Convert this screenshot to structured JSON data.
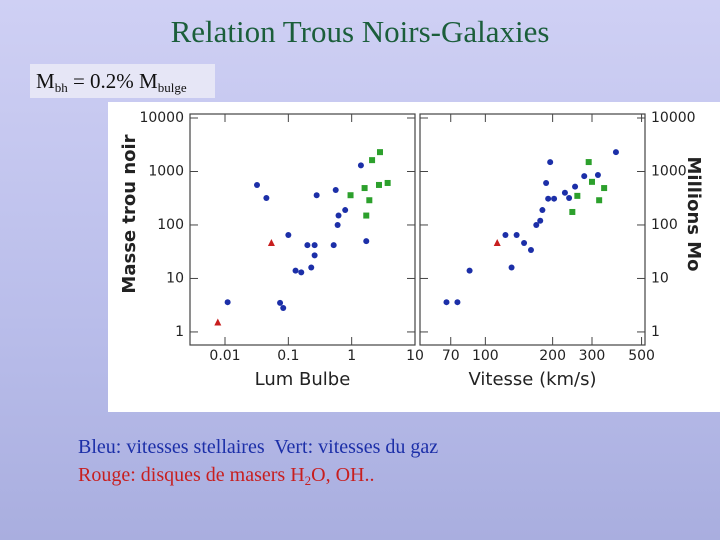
{
  "slide": {
    "title": "Relation Trous Noirs-Galaxies",
    "formula": [
      "M",
      "bh",
      " = 0.2% M",
      "bulge"
    ],
    "caption": [
      [
        "Bleu: vitesses stellaires",
        "Vert: vitesses du gaz"
      ],
      [
        "Rouge: disques de masers H",
        "2",
        "O, OH.."
      ]
    ]
  },
  "chart_data": [
    {
      "type": "scatter",
      "x_label": "Lum Bulbe",
      "y_label": "Masse trou noir",
      "xlog": true,
      "ylog": true,
      "xlim": [
        0.0028,
        10
      ],
      "ylim": [
        0.57,
        10000
      ],
      "xticks": [
        0.01,
        0.1,
        1,
        10
      ],
      "yticks": [
        1,
        10,
        100,
        1000,
        10000
      ],
      "series": [
        {
          "color": "#1c2fa8",
          "marker": "circle",
          "x": [
            0.011,
            0.032,
            0.045,
            0.074,
            0.083,
            0.1,
            0.13,
            0.16,
            0.2,
            0.23,
            0.26,
            0.28,
            0.26,
            0.52,
            0.6,
            0.62,
            0.79,
            0.56,
            1.4,
            1.7
          ],
          "values": [
            3.6,
            560,
            320,
            3.5,
            2.8,
            65,
            14,
            13,
            42,
            16,
            42,
            360,
            27,
            42,
            100,
            150,
            190,
            450,
            1300,
            50
          ]
        },
        {
          "color": "#2ca02c",
          "marker": "square",
          "x": [
            0.96,
            1.6,
            1.7,
            2.1,
            2.8,
            1.9,
            2.7,
            3.7
          ],
          "values": [
            360,
            490,
            150,
            1630,
            2300,
            290,
            560,
            610
          ]
        },
        {
          "color": "#c81e1e",
          "marker": "triangle",
          "x": [
            0.0077,
            0.054
          ],
          "values": [
            1.5,
            46
          ]
        }
      ]
    },
    {
      "type": "scatter",
      "x_label": "Vitesse (km/s)",
      "y_label": "Millions Mo",
      "xlog": true,
      "ylog": true,
      "xlim": [
        51,
        518
      ],
      "ylim": [
        0.57,
        10000
      ],
      "xticks": [
        70,
        100,
        200,
        300,
        500
      ],
      "yticks": [
        1,
        10,
        100,
        1000,
        10000
      ],
      "series": [
        {
          "color": "#1c2fa8",
          "marker": "circle",
          "x": [
            67,
            75,
            85,
            123,
            131,
            138,
            149,
            160,
            169,
            176,
            180,
            187,
            195,
            191,
            203,
            227,
            237,
            252,
            277,
            319,
            384
          ],
          "values": [
            3.6,
            3.6,
            14,
            65,
            16,
            65,
            46,
            34,
            100,
            120,
            190,
            610,
            1500,
            310,
            310,
            400,
            320,
            520,
            820,
            860,
            2300
          ]
        },
        {
          "color": "#2ca02c",
          "marker": "square",
          "x": [
            245,
            258,
            290,
            300,
            323,
            340
          ],
          "values": [
            175,
            350,
            1500,
            640,
            290,
            490
          ]
        },
        {
          "color": "#c81e1e",
          "marker": "triangle",
          "x": [
            113
          ],
          "values": [
            46
          ]
        }
      ]
    }
  ]
}
